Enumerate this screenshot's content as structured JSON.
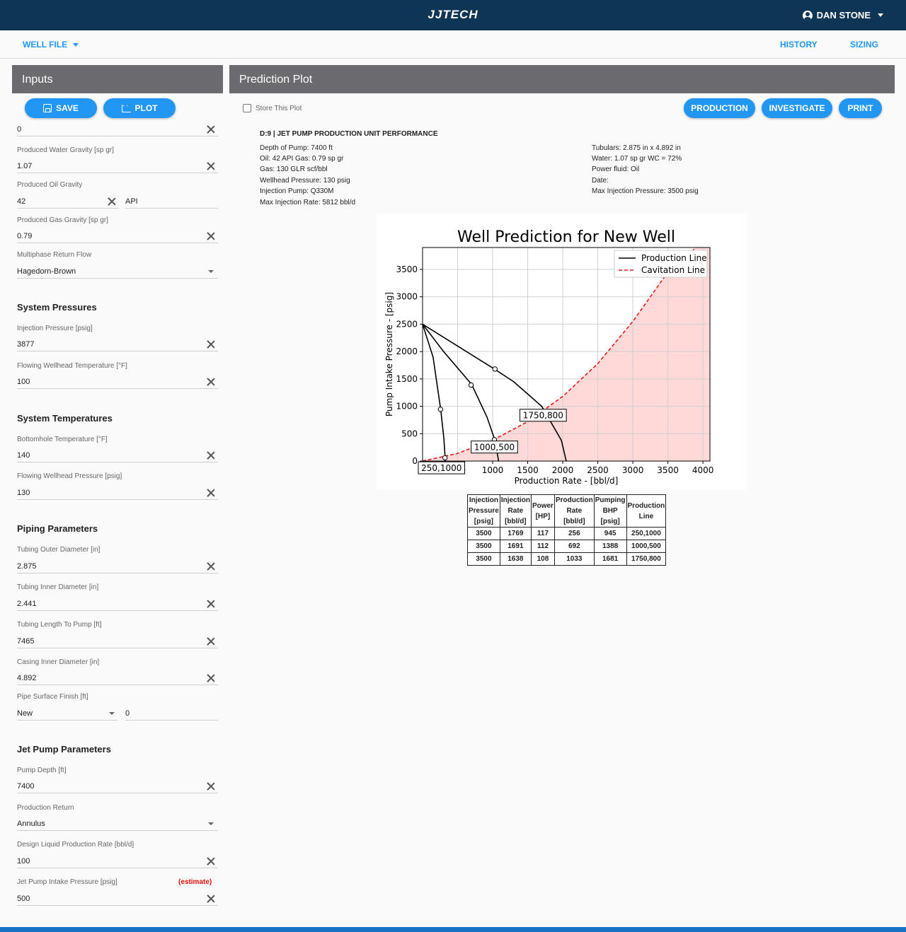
{
  "header": {
    "brand": "JJTECH",
    "user": "DAN STONE"
  },
  "nav": {
    "well_file": "WELL FILE",
    "history": "HISTORY",
    "sizing": "SIZING"
  },
  "inputs": {
    "title": "Inputs",
    "save_label": "SAVE",
    "plot_label": "PLOT",
    "top_value": "0",
    "water_gravity": {
      "label": "Produced Water Gravity [sp gr]",
      "value": "1.07"
    },
    "oil_gravity": {
      "label": "Produced Oil Gravity",
      "value": "42",
      "unit": "API"
    },
    "gas_gravity": {
      "label": "Produced Gas Gravity [sp gr]",
      "value": "0.79"
    },
    "multiphase": {
      "label": "Multiphase Return Flow",
      "value": "Hagedorn-Brown"
    },
    "system_pressures": {
      "title": "System Pressures",
      "injection_pressure": {
        "label": "Injection Pressure [psig]",
        "value": "3877"
      },
      "flowing_wellhead_temp": {
        "label": "Flowing Wellhead Temperature [°F]",
        "value": "100"
      }
    },
    "system_temperatures": {
      "title": "System Temperatures",
      "bottomhole_temp": {
        "label": "Bottomhole Temperature [°F]",
        "value": "140"
      },
      "flowing_wellhead_pressure": {
        "label": "Flowing Wellhead Pressure [psig]",
        "value": "130"
      }
    },
    "piping": {
      "title": "Piping Parameters",
      "tubing_od": {
        "label": "Tubing Outer Diameter [in]",
        "value": "2.875"
      },
      "tubing_id": {
        "label": "Tubing Inner Diameter [in]",
        "value": "2.441"
      },
      "tubing_length": {
        "label": "Tubing Length To Pump [ft]",
        "value": "7465"
      },
      "casing_id": {
        "label": "Casing Inner Diameter [in]",
        "value": "4.892"
      },
      "surface_finish": {
        "label": "Pipe Surface Finish [ft]",
        "value": "New",
        "roughness": "0"
      }
    },
    "jet_pump": {
      "title": "Jet Pump Parameters",
      "pump_depth": {
        "label": "Pump Depth [ft]",
        "value": "7400"
      },
      "production_return": {
        "label": "Production Return",
        "value": "Annulus"
      },
      "design_rate": {
        "label": "Design Liquid Production Rate [bbl/d]",
        "value": "100"
      },
      "intake_pressure": {
        "label": "Jet Pump Intake Pressure [psig]",
        "value": "500",
        "note": "(estimate)"
      }
    }
  },
  "prediction": {
    "title": "Prediction Plot",
    "store_label": "Store This Plot",
    "production_label": "PRODUCTION",
    "investigate_label": "INVESTIGATE",
    "print_label": "PRINT",
    "report_title": "D:9 | JET PUMP PRODUCTION UNIT PERFORMANCE",
    "left_info": [
      "Depth of Pump: 7400 ft",
      "Oil: 42 API Gas: 0.79 sp gr",
      "Gas: 130 GLR scf/bbl",
      "Wellhead Pressure: 130 psig",
      "Injection Pump: Q330M",
      "Max Injection Rate: 5812 bbl/d"
    ],
    "right_info": [
      "Tubulars: 2.875 in x 4.892 in",
      "Water: 1.07 sp gr WC = 72%",
      "Power fluid: Oil",
      "Date:",
      "Max Injection Pressure: 3500 psig"
    ]
  },
  "chart_data": {
    "type": "line",
    "title": "Well Prediction for New Well",
    "xlabel": "Production Rate - [bbl/d]",
    "ylabel": "Pump Intake Pressure - [psig]",
    "xlim": [
      0,
      4100
    ],
    "ylim": [
      0,
      3900
    ],
    "xticks": [
      500,
      1000,
      1500,
      2000,
      2500,
      3000,
      3500,
      4000
    ],
    "yticks": [
      0,
      500,
      1000,
      1500,
      2000,
      2500,
      3000,
      3500
    ],
    "grid": true,
    "legend_position": "top-right",
    "series": [
      {
        "name": "Production Line",
        "style": "solid",
        "color": "#000000",
        "x": [
          0,
          1000,
          1300,
          1700,
          1980,
          2050
        ],
        "y": [
          2500,
          1700,
          1450,
          1000,
          380,
          0
        ]
      },
      {
        "name": "",
        "style": "solid",
        "color": "#000000",
        "x": [
          0,
          300,
          700,
          920,
          1030,
          1085
        ],
        "y": [
          2500,
          2000,
          1400,
          800,
          390,
          0
        ]
      },
      {
        "name": "",
        "style": "solid",
        "color": "#000000",
        "x": [
          0,
          150,
          260,
          305,
          325
        ],
        "y": [
          2500,
          1900,
          930,
          400,
          0
        ]
      },
      {
        "name": "Cavitation Line",
        "style": "dashed",
        "color": "#e8191c",
        "x": [
          0,
          500,
          1000,
          1500,
          2000,
          2500,
          3000,
          3500,
          3900
        ],
        "y": [
          0,
          140,
          380,
          720,
          1180,
          1780,
          2550,
          3450,
          3900
        ]
      }
    ],
    "markers": [
      {
        "x": 256,
        "y": 945
      },
      {
        "x": 692,
        "y": 1388
      },
      {
        "x": 1033,
        "y": 1681
      },
      {
        "x": 320,
        "y": 60
      },
      {
        "x": 1025,
        "y": 390
      }
    ],
    "annotations": [
      {
        "text": "250,1000",
        "x": 270,
        "y": -130
      },
      {
        "text": "1000,500",
        "x": 1025,
        "y": 250
      },
      {
        "text": "1750,800",
        "x": 1720,
        "y": 830
      }
    ],
    "fill": {
      "color": "#ffd8d8"
    }
  },
  "results_table": {
    "headers": [
      [
        "Injection",
        "Pressure",
        "[psig]"
      ],
      [
        "Injection",
        "Rate",
        "[bbl/d]"
      ],
      [
        "Power",
        "[HP]"
      ],
      [
        "Production",
        "Rate",
        "[bbl/d]"
      ],
      [
        "Pumping",
        "BHP",
        "[psig]"
      ],
      [
        "Production",
        "Line"
      ]
    ],
    "rows": [
      [
        "3500",
        "1769",
        "117",
        "256",
        "945",
        "250,1000"
      ],
      [
        "3500",
        "1691",
        "112",
        "692",
        "1388",
        "1000,500"
      ],
      [
        "3500",
        "1638",
        "108",
        "1033",
        "1681",
        "1750,800"
      ]
    ]
  },
  "colors": {
    "primary": "#2196f3",
    "header_bg": "#0f3554",
    "panel_head": "#6b6b6f",
    "estimate": "#e01010"
  }
}
